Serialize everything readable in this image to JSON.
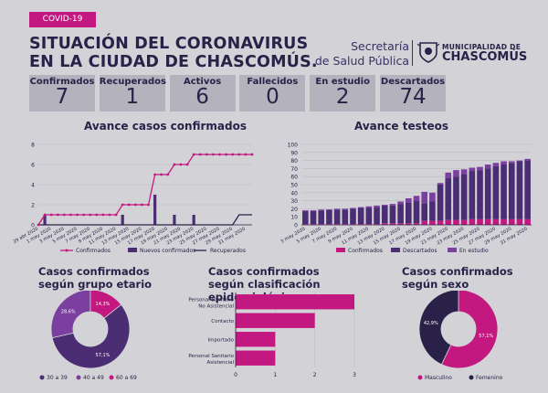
{
  "header": {
    "tag": "COVID-19",
    "title_line1": "SITUACIÓN DEL CORONAVIRUS",
    "title_line2": "EN LA CIUDAD DE CHASCOMÚS.",
    "secretaria_line1": "Secretaría",
    "secretaria_line2": "de Salud Pública",
    "municipio_line1": "MUNICIPALIDAD DE",
    "municipio_line2": "CHASCOMÚS"
  },
  "stats": [
    {
      "label": "Confirmados",
      "value": "7"
    },
    {
      "label": "Recuperados",
      "value": "1"
    },
    {
      "label": "Activos",
      "value": "6"
    },
    {
      "label": "Fallecidos",
      "value": "0"
    },
    {
      "label": "En estudio",
      "value": "2"
    },
    {
      "label": "Descartados",
      "value": "74"
    }
  ],
  "colors": {
    "magenta": "#c2187f",
    "purple": "#4b2d73",
    "dark": "#2a2148",
    "mid_purple": "#7b3fa0"
  },
  "chart_data": [
    {
      "type": "line",
      "title": "Avance casos confirmados",
      "ylim": [
        0,
        8
      ],
      "yticks": [
        0,
        2,
        4,
        6,
        8
      ],
      "x": [
        "29 abr 2020",
        "30 abr 2020",
        "1 may 2020",
        "2 may 2020",
        "3 may 2020",
        "4 may 2020",
        "5 may 2020",
        "6 may 2020",
        "7 may 2020",
        "8 may 2020",
        "9 may 2020",
        "10 may 2020",
        "11 may 2020",
        "12 may 2020",
        "13 may 2020",
        "14 may 2020",
        "15 may 2020",
        "16 may 2020",
        "17 may 2020",
        "18 may 2020",
        "19 may 2020",
        "20 may 2020",
        "21 may 2020",
        "22 may 2020",
        "23 may 2020",
        "24 may 2020",
        "25 may 2020",
        "26 may 2020",
        "27 may 2020",
        "28 may 2020",
        "29 may 2020",
        "30 may 2020",
        "31 may 2020",
        "1 jun 2020"
      ],
      "xtick_labels": [
        "29 abr 2020",
        "1 may 2020",
        "3 may 2020",
        "5 may 2020",
        "7 may 2020",
        "9 may 2020",
        "11 may 2020",
        "13 may 2020",
        "15 may 2020",
        "17 may 2020",
        "19 may 2020",
        "21 may 2020",
        "23 may 2020",
        "25 may 2020",
        "27 may 2020",
        "29 may 2020",
        "31 may 2020"
      ],
      "series": [
        {
          "name": "Confirmados",
          "kind": "line",
          "values": [
            0,
            1,
            1,
            1,
            1,
            1,
            1,
            1,
            1,
            1,
            1,
            1,
            1,
            2,
            2,
            2,
            2,
            2,
            5,
            5,
            5,
            6,
            6,
            6,
            7,
            7,
            7,
            7,
            7,
            7,
            7,
            7,
            7,
            7
          ]
        },
        {
          "name": "Nuevos confirmados",
          "kind": "bar",
          "values": [
            0,
            1,
            0,
            0,
            0,
            0,
            0,
            0,
            0,
            0,
            0,
            0,
            0,
            1,
            0,
            0,
            0,
            0,
            3,
            0,
            0,
            1,
            0,
            0,
            1,
            0,
            0,
            0,
            0,
            0,
            0,
            0,
            0,
            0
          ]
        },
        {
          "name": "Recuperados",
          "kind": "line",
          "values": [
            0,
            0,
            0,
            0,
            0,
            0,
            0,
            0,
            0,
            0,
            0,
            0,
            0,
            0,
            0,
            0,
            0,
            0,
            0,
            0,
            0,
            0,
            0,
            0,
            0,
            0,
            0,
            0,
            0,
            0,
            0,
            1,
            1,
            1
          ]
        }
      ],
      "legend": "bottom"
    },
    {
      "type": "bar",
      "stacked": true,
      "title": "Avance testeos",
      "ylim": [
        0,
        100
      ],
      "yticks": [
        0,
        10,
        20,
        30,
        40,
        50,
        60,
        70,
        80,
        90,
        100
      ],
      "categories": [
        "3 may 2020",
        "4 may 2020",
        "5 may 2020",
        "6 may 2020",
        "7 may 2020",
        "8 may 2020",
        "9 may 2020",
        "10 may 2020",
        "11 may 2020",
        "12 may 2020",
        "13 may 2020",
        "14 may 2020",
        "15 may 2020",
        "16 may 2020",
        "17 may 2020",
        "18 may 2020",
        "19 may 2020",
        "20 may 2020",
        "21 may 2020",
        "22 may 2020",
        "23 may 2020",
        "24 may 2020",
        "25 may 2020",
        "26 may 2020",
        "27 may 2020",
        "28 may 2020",
        "29 may 2020",
        "30 may 2020",
        "31 may 2020"
      ],
      "xtick_labels": [
        "3 may 2020",
        "5 may 2020",
        "7 may 2020",
        "9 may 2020",
        "11 may 2020",
        "13 may 2020",
        "15 may 2020",
        "17 may 2020",
        "19 may 2020",
        "21 may 2020",
        "23 may 2020",
        "25 may 2020",
        "27 may 2020",
        "29 may 2020",
        "31 may 2020"
      ],
      "series": [
        {
          "name": "Confirmados",
          "values": [
            1,
            1,
            1,
            1,
            1,
            1,
            1,
            1,
            1,
            1,
            2,
            2,
            2,
            2,
            2,
            5,
            5,
            5,
            6,
            6,
            6,
            7,
            7,
            7,
            7,
            7,
            7,
            7,
            7
          ]
        },
        {
          "name": "Descartados",
          "values": [
            16,
            16,
            17,
            18,
            18,
            18,
            19,
            20,
            20,
            21,
            22,
            22,
            24,
            26,
            28,
            22,
            24,
            45,
            52,
            54,
            57,
            60,
            61,
            63,
            66,
            68,
            70,
            72,
            73
          ]
        },
        {
          "name": "En estudio",
          "values": [
            1,
            1,
            1,
            0,
            1,
            1,
            1,
            1,
            2,
            2,
            1,
            2,
            3,
            5,
            6,
            14,
            11,
            2,
            7,
            8,
            6,
            4,
            4,
            5,
            4,
            4,
            2,
            1,
            2
          ]
        }
      ],
      "legend": "bottom"
    },
    {
      "type": "pie",
      "donut": true,
      "title": "Casos confirmados según grupo etario",
      "slices": [
        {
          "name": "30 a 39",
          "value": 57.1,
          "label": "57,1%"
        },
        {
          "name": "40 a 49",
          "value": 28.6,
          "label": "28,6%"
        },
        {
          "name": "60 a 69",
          "value": 14.3,
          "label": "14,3%"
        }
      ],
      "legend": "bottom"
    },
    {
      "type": "bar",
      "orientation": "horizontal",
      "title": "Casos confirmados según clasificación epidemiológica",
      "xlim": [
        0,
        3
      ],
      "xticks": [
        0,
        1,
        2,
        3
      ],
      "categories": [
        "Personal Sanitario No Asistencial",
        "Contacto",
        "Importado",
        "Personal Sanitario Asistencial"
      ],
      "values": [
        3,
        2,
        1,
        1
      ]
    },
    {
      "type": "pie",
      "donut": true,
      "title": "Casos confirmados según sexo",
      "slices": [
        {
          "name": "Masculino",
          "value": 57.1,
          "label": "57,1%"
        },
        {
          "name": "Femenino",
          "value": 42.9,
          "label": "42,9%"
        }
      ],
      "legend": "bottom"
    }
  ]
}
